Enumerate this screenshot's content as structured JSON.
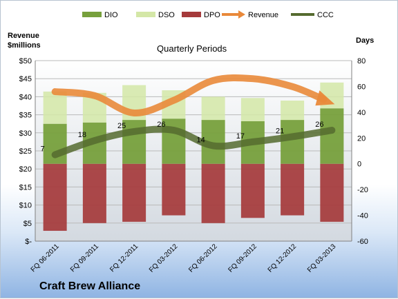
{
  "company_title": "Craft Brew Alliance",
  "chart_data": {
    "type": "bar",
    "title": "Quarterly Periods",
    "ylabel_left": "Revenue\n$millions",
    "ylabel_left_lines": [
      "Revenue",
      "$millions"
    ],
    "ylabel_right": "Days",
    "legend_position": "top",
    "grid": true,
    "categories": [
      "FQ 06-2011",
      "FQ 09-2011",
      "FQ 12-2011",
      "FQ 03-2012",
      "FQ 06-2012",
      "FQ 09-2012",
      "FQ 12-2012",
      "FQ 03-2013"
    ],
    "left_axis": {
      "range": [
        0,
        50
      ],
      "ticks": [
        "$-",
        "$5",
        "$10",
        "$15",
        "$20",
        "$25",
        "$30",
        "$35",
        "$40",
        "$45",
        "$50"
      ]
    },
    "right_axis": {
      "range": [
        -60,
        80
      ],
      "ticks": [
        "-60",
        "-40",
        "-20",
        "0",
        "20",
        "40",
        "60",
        "80"
      ]
    },
    "series": [
      {
        "name": "DIO",
        "kind": "stacked-bar",
        "axis": "right",
        "color": "#77a03c",
        "values": [
          31,
          32,
          34,
          35,
          34,
          33,
          34,
          43
        ]
      },
      {
        "name": "DSO",
        "kind": "stacked-bar",
        "axis": "right",
        "color": "#d4e7a7",
        "values": [
          25,
          23,
          27,
          22,
          18,
          18,
          15,
          20
        ]
      },
      {
        "name": "DPO",
        "kind": "bar-negative",
        "axis": "right",
        "color": "#a53a3b",
        "values": [
          -52,
          -46,
          -45,
          -40,
          -46,
          -42,
          -40,
          -45
        ]
      },
      {
        "name": "Revenue",
        "kind": "line",
        "axis": "left",
        "color": "#e9893a",
        "values": [
          41.4,
          40.3,
          35.5,
          39.0,
          44.5,
          45.0,
          42.8,
          38.5
        ]
      },
      {
        "name": "CCC",
        "kind": "line",
        "axis": "right",
        "color": "#556b2f",
        "values": [
          7,
          18,
          25,
          26,
          14,
          17,
          21,
          26
        ],
        "labels": [
          "7",
          "18",
          "25",
          "26",
          "14",
          "17",
          "21",
          "26"
        ]
      }
    ]
  }
}
